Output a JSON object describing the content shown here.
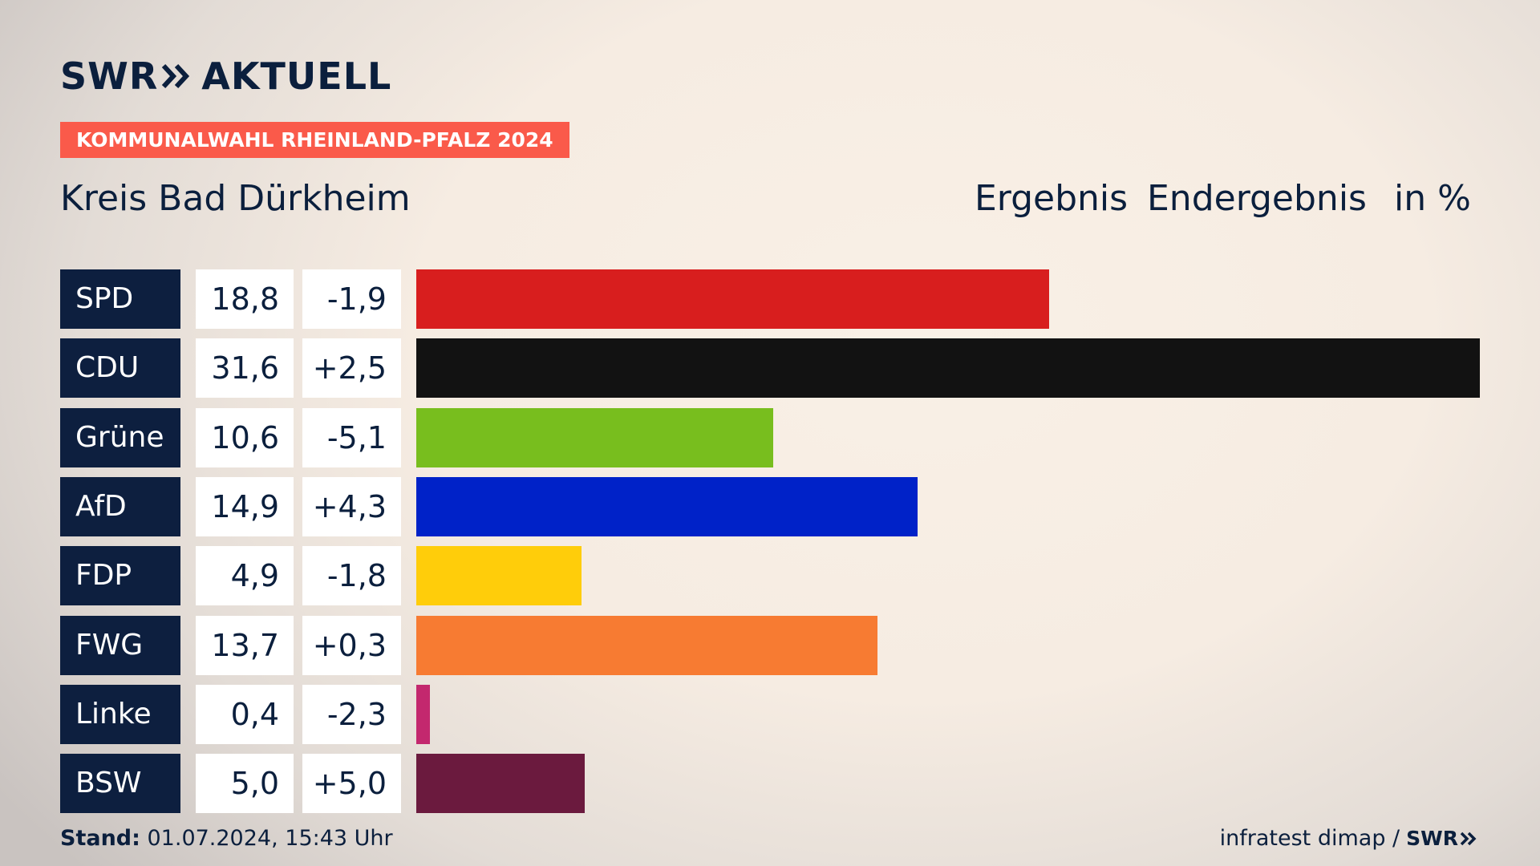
{
  "brand": {
    "logo_left": "SWR",
    "logo_right": "AKTUELL",
    "footer_logo": "SWR"
  },
  "badge": "KOMMUNALWAHL RHEINLAND-PFALZ 2024",
  "region": "Kreis Bad Dürkheim",
  "header": {
    "ergebnis": "Ergebnis",
    "endergebnis": "Endergebnis",
    "unit": "in %"
  },
  "footer": {
    "stand_label": "Stand:",
    "stand_value": " 01.07.2024, 15:43 Uhr",
    "source": "infratest dimap /"
  },
  "chart_data": {
    "type": "bar",
    "orientation": "horizontal",
    "categories": [
      "SPD",
      "CDU",
      "Grüne",
      "AfD",
      "FDP",
      "FWG",
      "Linke",
      "BSW"
    ],
    "values": [
      18.8,
      31.6,
      10.6,
      14.9,
      4.9,
      13.7,
      0.4,
      5.0
    ],
    "values_label": [
      "18,8",
      "31,6",
      "10,6",
      "14,9",
      "4,9",
      "13,7",
      "0,4",
      "5,0"
    ],
    "changes": [
      -1.9,
      2.5,
      -5.1,
      4.3,
      -1.8,
      0.3,
      -2.3,
      5.0
    ],
    "changes_label": [
      "-1,9",
      "+2,5",
      "-5,1",
      "+4,3",
      "-1,8",
      "+0,3",
      "-2,3",
      "+5,0"
    ],
    "colors": [
      "#d81e1e",
      "#121212",
      "#78be1e",
      "#0022c8",
      "#ffcd0a",
      "#f77b32",
      "#c3286e",
      "#6b1a3e"
    ],
    "xlim": [
      0,
      31.6
    ]
  }
}
